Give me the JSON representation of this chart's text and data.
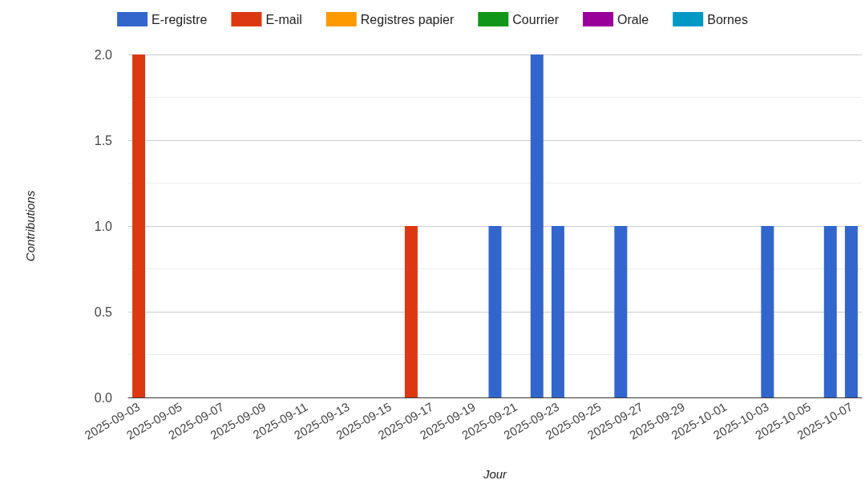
{
  "chart_data": {
    "type": "bar",
    "stacked": true,
    "xlabel": "Jour",
    "ylabel": "Contributions",
    "categories": [
      "2025-09-03",
      null,
      "2025-09-05",
      null,
      "2025-09-07",
      null,
      "2025-09-09",
      null,
      "2025-09-11",
      null,
      "2025-09-13",
      null,
      "2025-09-15",
      null,
      "2025-09-17",
      null,
      "2025-09-19",
      null,
      "2025-09-21",
      null,
      "2025-09-23",
      null,
      "2025-09-25",
      null,
      "2025-09-27",
      null,
      "2025-09-29",
      null,
      "2025-10-01",
      null,
      "2025-10-03",
      null,
      "2025-10-05",
      null,
      "2025-10-07"
    ],
    "series": [
      {
        "name": "E-registre",
        "color": "#3366cc",
        "values": [
          0,
          0,
          0,
          0,
          0,
          0,
          0,
          0,
          0,
          0,
          0,
          0,
          0,
          0,
          0,
          0,
          0,
          1,
          0,
          2,
          1,
          0,
          0,
          1,
          0,
          0,
          0,
          0,
          0,
          0,
          1,
          0,
          0,
          1,
          1
        ]
      },
      {
        "name": "E-mail",
        "color": "#dc3912",
        "values": [
          2,
          0,
          0,
          0,
          0,
          0,
          0,
          0,
          0,
          0,
          0,
          0,
          0,
          1,
          0,
          0,
          0,
          0,
          0,
          0,
          0,
          0,
          0,
          0,
          0,
          0,
          0,
          0,
          0,
          0,
          0,
          0,
          0,
          0,
          0
        ]
      },
      {
        "name": "Registres papier",
        "color": "#ff9900",
        "values": [
          0,
          0,
          0,
          0,
          0,
          0,
          0,
          0,
          0,
          0,
          0,
          0,
          0,
          0,
          0,
          0,
          0,
          0,
          0,
          0,
          0,
          0,
          0,
          0,
          0,
          0,
          0,
          0,
          0,
          0,
          0,
          0,
          0,
          0,
          0
        ]
      },
      {
        "name": "Courrier",
        "color": "#109618",
        "values": [
          0,
          0,
          0,
          0,
          0,
          0,
          0,
          0,
          0,
          0,
          0,
          0,
          0,
          0,
          0,
          0,
          0,
          0,
          0,
          0,
          0,
          0,
          0,
          0,
          0,
          0,
          0,
          0,
          0,
          0,
          0,
          0,
          0,
          0,
          0
        ]
      },
      {
        "name": "Orale",
        "color": "#990099",
        "values": [
          0,
          0,
          0,
          0,
          0,
          0,
          0,
          0,
          0,
          0,
          0,
          0,
          0,
          0,
          0,
          0,
          0,
          0,
          0,
          0,
          0,
          0,
          0,
          0,
          0,
          0,
          0,
          0,
          0,
          0,
          0,
          0,
          0,
          0,
          0
        ]
      },
      {
        "name": "Bornes",
        "color": "#0099c6",
        "values": [
          0,
          0,
          0,
          0,
          0,
          0,
          0,
          0,
          0,
          0,
          0,
          0,
          0,
          0,
          0,
          0,
          0,
          0,
          0,
          0,
          0,
          0,
          0,
          0,
          0,
          0,
          0,
          0,
          0,
          0,
          0,
          0,
          0,
          0,
          0
        ]
      }
    ],
    "ylim": [
      0,
      2
    ],
    "yticks": [
      {
        "value": 0,
        "label": "0.0"
      },
      0.5,
      {
        "value": 1,
        "label": "1.0"
      },
      1.5,
      {
        "value": 2,
        "label": "2.0"
      }
    ],
    "grid": "y",
    "legend": "top"
  }
}
